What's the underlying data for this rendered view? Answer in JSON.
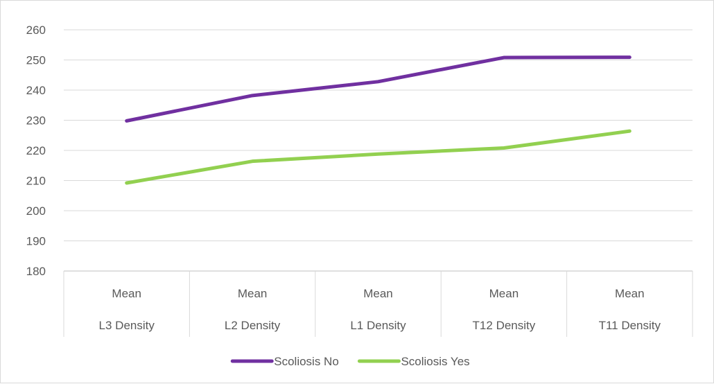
{
  "chart_data": {
    "type": "line",
    "categories": [
      [
        "Mean",
        "L3 Density"
      ],
      [
        "Mean",
        "L2 Density"
      ],
      [
        "Mean",
        "L1 Density"
      ],
      [
        "Mean",
        "T12 Density"
      ],
      [
        "Mean",
        "T11 Density"
      ]
    ],
    "series": [
      {
        "name": "Scoliosis No",
        "color": "#7030a0",
        "values": [
          229.8,
          238.2,
          242.8,
          250.8,
          250.9
        ]
      },
      {
        "name": "Scoliosis Yes",
        "color": "#92d050",
        "values": [
          209.2,
          216.4,
          218.8,
          220.8,
          226.4
        ]
      }
    ],
    "ylim": [
      180,
      260
    ],
    "y_ticks": [
      180,
      190,
      200,
      210,
      220,
      230,
      240,
      250,
      260
    ],
    "grid": true,
    "legend": "bottom",
    "title": "",
    "xlabel": "",
    "ylabel": ""
  }
}
